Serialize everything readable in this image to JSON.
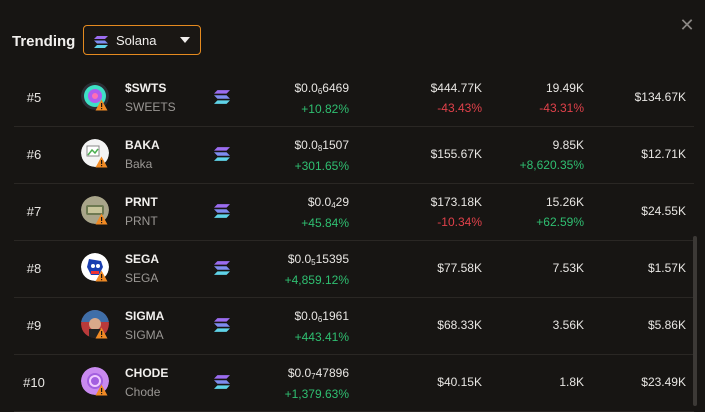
{
  "header": {
    "title": "Trending",
    "chain": "Solana"
  },
  "colors": {
    "accent": "#e58a1f",
    "positive": "#2fbf71",
    "negative": "#e0414a"
  },
  "rows": [
    {
      "rank": "#5",
      "name": "$SWTS",
      "ticker": "SWEETS",
      "price_prefix": "$0.0",
      "price_sub": "6",
      "price_tail": "6469",
      "price_change": "+10.82%",
      "volume": "$444.77K",
      "volume_change": "-43.43%",
      "txns": "19.49K",
      "txns_change": "-43.31%",
      "liquidity": "$134.67K",
      "avatar": "swts"
    },
    {
      "rank": "#6",
      "name": "BAKA",
      "ticker": "Baka",
      "price_prefix": "$0.0",
      "price_sub": "8",
      "price_tail": "1507",
      "price_change": "+301.65%",
      "volume": "$155.67K",
      "volume_change": "",
      "txns": "9.85K",
      "txns_change": "+8,620.35%",
      "liquidity": "$12.71K",
      "avatar": "baka"
    },
    {
      "rank": "#7",
      "name": "PRNT",
      "ticker": "PRNT",
      "price_prefix": "$0.0",
      "price_sub": "4",
      "price_tail": "29",
      "price_change": "+45.84%",
      "volume": "$173.18K",
      "volume_change": "-10.34%",
      "txns": "15.26K",
      "txns_change": "+62.59%",
      "liquidity": "$24.55K",
      "avatar": "prnt"
    },
    {
      "rank": "#8",
      "name": "SEGA",
      "ticker": "SEGA",
      "price_prefix": "$0.0",
      "price_sub": "5",
      "price_tail": "15395",
      "price_change": "+4,859.12%",
      "volume": "$77.58K",
      "volume_change": "",
      "txns": "7.53K",
      "txns_change": "",
      "liquidity": "$1.57K",
      "avatar": "sega"
    },
    {
      "rank": "#9",
      "name": "SIGMA",
      "ticker": "SIGMA",
      "price_prefix": "$0.0",
      "price_sub": "6",
      "price_tail": "1961",
      "price_change": "+443.41%",
      "volume": "$68.33K",
      "volume_change": "",
      "txns": "3.56K",
      "txns_change": "",
      "liquidity": "$5.86K",
      "avatar": "sigma"
    },
    {
      "rank": "#10",
      "name": "CHODE",
      "ticker": "Chode",
      "price_prefix": "$0.0",
      "price_sub": "7",
      "price_tail": "47896",
      "price_change": "+1,379.63%",
      "volume": "$40.15K",
      "volume_change": "",
      "txns": "1.8K",
      "txns_change": "",
      "liquidity": "$23.49K",
      "avatar": "chode"
    }
  ]
}
